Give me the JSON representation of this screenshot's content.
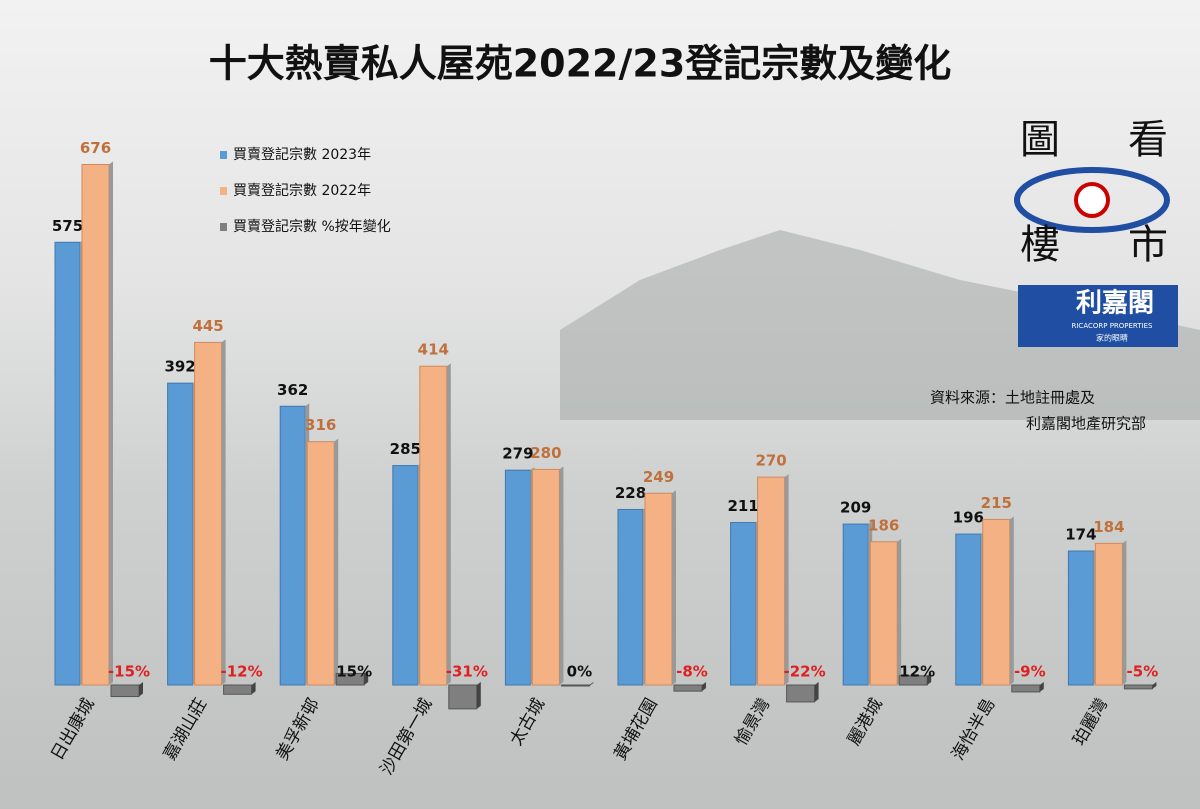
{
  "chart_data": {
    "type": "bar",
    "title": "十大熱賣私人屋苑2022/23登記宗數及變化",
    "categories": [
      "日出康城",
      "嘉湖山莊",
      "美孚新邨",
      "沙田第一城",
      "太古城",
      "黃埔花園",
      "愉景灣",
      "麗港城",
      "海怡半島",
      "珀麗灣"
    ],
    "series": [
      {
        "name": "買賣登記宗數 2023年",
        "color": "#5b9bd5",
        "values": [
          575,
          392,
          362,
          285,
          279,
          228,
          211,
          209,
          196,
          174
        ]
      },
      {
        "name": "買賣登記宗數 2022年",
        "color": "#f4b183",
        "values": [
          676,
          445,
          316,
          414,
          280,
          249,
          270,
          186,
          215,
          184
        ]
      },
      {
        "name": "買賣登記宗數 %按年變化",
        "color": "#7f7f7f",
        "values": [
          -15,
          -12,
          15,
          -31,
          0,
          -8,
          -22,
          12,
          -9,
          -5
        ],
        "value_labels": [
          "-15%",
          "-12%",
          "15%",
          "-31%",
          "0%",
          "-8%",
          "-22%",
          "12%",
          "-9%",
          "-5%"
        ]
      }
    ],
    "ylim": [
      0,
      700
    ],
    "source": [
      "資料來源：土地註冊處及",
      "利嘉閣地產研究部"
    ]
  },
  "logo": {
    "chars": [
      "圖",
      "看",
      "樓",
      "市"
    ],
    "brand": "利嘉閣",
    "brand_en": "RICACORP PROPERTIES",
    "slogan": "家的眼睛"
  }
}
